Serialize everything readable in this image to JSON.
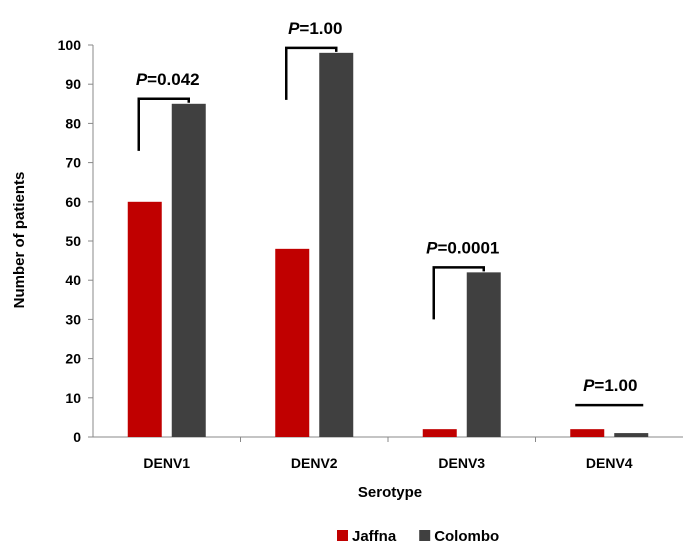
{
  "chart_data": {
    "type": "bar",
    "categories": [
      "DENV1",
      "DENV2",
      "DENV3",
      "DENV4"
    ],
    "series": [
      {
        "name": "Jaffna",
        "color": "#c00000",
        "values": [
          60,
          48,
          2,
          2
        ]
      },
      {
        "name": "Colombo",
        "color": "#404040",
        "values": [
          85,
          98,
          42,
          1
        ]
      }
    ],
    "xlabel": "Serotype",
    "ylabel": "Number of patients",
    "ylim": [
      0,
      100
    ],
    "yticks": [
      0,
      10,
      20,
      30,
      40,
      50,
      60,
      70,
      80,
      90,
      100
    ],
    "grid": false,
    "legend_position": "bottom",
    "annotations": [
      {
        "category": "DENV1",
        "p_label": "P",
        "p_value": "=0.042",
        "style": "bracket"
      },
      {
        "category": "DENV2",
        "p_label": "P",
        "p_value": "=1.00",
        "style": "bracket"
      },
      {
        "category": "DENV3",
        "p_label": "P",
        "p_value": "=0.0001",
        "style": "bracket"
      },
      {
        "category": "DENV4",
        "p_label": "P",
        "p_value": "=1.00",
        "style": "line"
      }
    ]
  }
}
